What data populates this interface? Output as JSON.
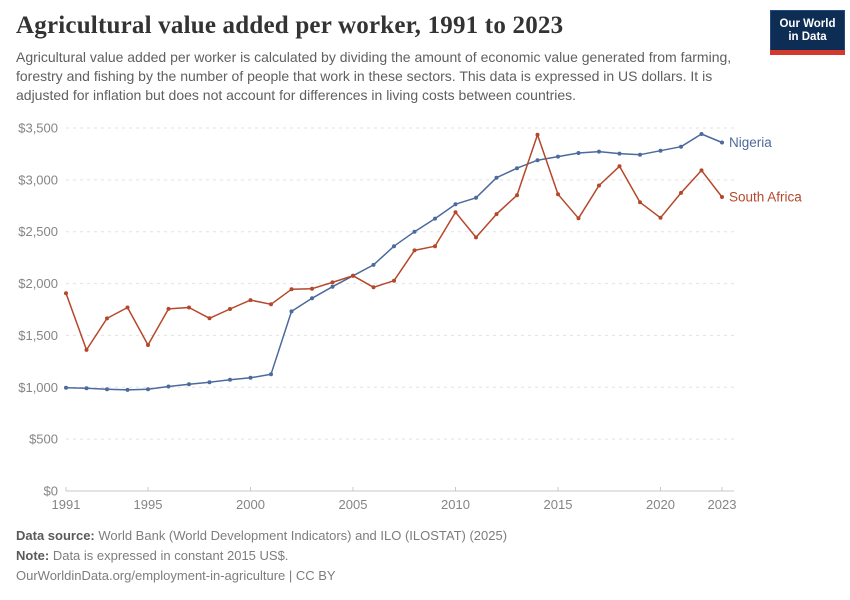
{
  "header": {
    "title": "Agricultural value added per worker, 1991 to 2023",
    "subtitle": "Agricultural value added per worker is calculated by dividing the amount of economic value generated from farming, forestry and fishing by the number of people that work in these sectors. This data is expressed in US dollars. It is adjusted for inflation but does not account for differences in living costs between countries.",
    "logo": {
      "line1": "Our World",
      "line2": "in Data"
    }
  },
  "footer": {
    "data_source_label": "Data source:",
    "data_source": " World Bank (World Development Indicators) and ILO (ILOSTAT) (2025)",
    "note_label": "Note:",
    "note": " Data is expressed in constant 2015 US$.",
    "attribution": "OurWorldinData.org/employment-in-agriculture | CC BY"
  },
  "chart_data": {
    "type": "line",
    "title": "Agricultural value added per worker, 1991 to 2023",
    "unit": "constant 2015 US$",
    "x": [
      1991,
      1992,
      1993,
      1994,
      1995,
      1996,
      1997,
      1998,
      1999,
      2000,
      2001,
      2002,
      2003,
      2004,
      2005,
      2006,
      2007,
      2008,
      2009,
      2010,
      2011,
      2012,
      2013,
      2014,
      2015,
      2016,
      2017,
      2018,
      2019,
      2020,
      2021,
      2022,
      2023
    ],
    "series": [
      {
        "name": "Nigeria",
        "color": "#4C6A9C",
        "values": [
          995,
          990,
          982,
          975,
          981,
          1008,
          1030,
          1049,
          1073,
          1091,
          1125,
          1732,
          1858,
          1970,
          2075,
          2180,
          2360,
          2500,
          2626,
          2765,
          2827,
          3021,
          3112,
          3190,
          3224,
          3259,
          3272,
          3253,
          3243,
          3281,
          3320,
          3442,
          3360
        ]
      },
      {
        "name": "South Africa",
        "color": "#B5472B",
        "values": [
          1906,
          1360,
          1664,
          1769,
          1408,
          1756,
          1769,
          1665,
          1755,
          1841,
          1800,
          1945,
          1951,
          2011,
          2076,
          1964,
          2028,
          2320,
          2360,
          2688,
          2445,
          2670,
          2852,
          3435,
          2861,
          2629,
          2946,
          3131,
          2784,
          2634,
          2874,
          3091,
          2835
        ]
      }
    ],
    "ylim": [
      0,
      3500
    ],
    "yticks": [
      0,
      500,
      1000,
      1500,
      2000,
      2500,
      3000,
      3500
    ],
    "ytick_labels": [
      "$0",
      "$500",
      "$1,000",
      "$1,500",
      "$2,000",
      "$2,500",
      "$3,000",
      "$3,500"
    ],
    "xticks": [
      1991,
      1995,
      2000,
      2005,
      2010,
      2015,
      2020,
      2023
    ],
    "grid": "horizontal-dashed",
    "legend_position": "end-of-line-labels",
    "axis_color": "#c8c8c8",
    "grid_color": "#e2e2e2",
    "tick_label_color": "#858585"
  }
}
